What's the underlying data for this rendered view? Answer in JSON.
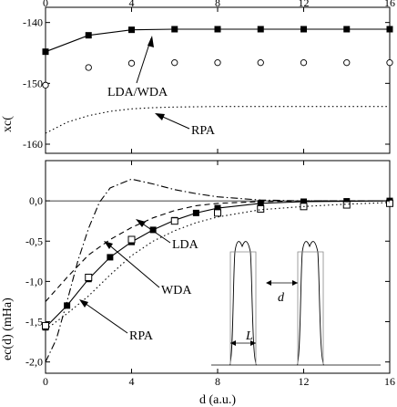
{
  "chart_data": [
    {
      "type": "line",
      "panel": "top",
      "xlabel": "",
      "ylabel": "xc(",
      "xlim": [
        0,
        16
      ],
      "ylim": [
        -161.5,
        -137.5
      ],
      "x_ticks": [
        "0",
        "4",
        "8",
        "12",
        "16"
      ],
      "y_ticks": [
        -140,
        -150,
        -160
      ],
      "y_tick_labels": [
        "-140",
        "-150",
        "-160"
      ],
      "series": [
        {
          "name": "LDA/WDA",
          "style": "solid-line-with-filled-squares",
          "x": [
            0,
            2,
            4,
            6,
            8,
            10,
            12,
            14,
            16
          ],
          "y": [
            -144.8,
            -142.1,
            -141.2,
            -141.1,
            -141.1,
            -141.1,
            -141.1,
            -141.1,
            -141.1
          ]
        },
        {
          "name": "",
          "style": "open-circles",
          "x": [
            0,
            2,
            4,
            6,
            8,
            10,
            12,
            14,
            16
          ],
          "y": [
            -150.3,
            -147.4,
            -146.7,
            -146.6,
            -146.6,
            -146.6,
            -146.6,
            -146.6,
            -146.6
          ]
        },
        {
          "name": "RPA",
          "style": "dotted-line",
          "x": [
            0,
            1,
            2,
            3,
            4,
            5,
            6,
            8,
            10,
            12,
            14,
            16
          ],
          "y": [
            -158.2,
            -156.4,
            -155.3,
            -154.6,
            -154.2,
            -154.0,
            -153.9,
            -153.8,
            -153.8,
            -153.8,
            -153.8,
            -153.8
          ]
        }
      ],
      "annotations": [
        "LDA/WDA",
        "RPA"
      ]
    },
    {
      "type": "line",
      "panel": "bottom",
      "xlabel": "d (a.u.)",
      "ylabel": "ec(d) (mHa)",
      "xlim": [
        0,
        16
      ],
      "ylim": [
        -2.14,
        0.5
      ],
      "x_ticks": [
        "0",
        "4",
        "8",
        "12",
        "16"
      ],
      "y_ticks": [
        0,
        -0.5,
        -1.0,
        -1.5,
        -2.0
      ],
      "y_tick_labels": [
        "0,0",
        "-0,5",
        "-1,0",
        "-1,5",
        "-2,0"
      ],
      "series": [
        {
          "name": "",
          "style": "solid-line-with-filled-squares",
          "x": [
            0,
            1,
            2,
            3,
            4,
            5,
            6,
            7,
            8,
            10,
            12,
            14,
            16
          ],
          "y": [
            -1.57,
            -1.3,
            -0.97,
            -0.7,
            -0.51,
            -0.36,
            -0.24,
            -0.15,
            -0.09,
            -0.03,
            -0.01,
            -0.005,
            0.0
          ]
        },
        {
          "name": "",
          "style": "open-squares",
          "x": [
            0,
            2,
            4,
            6,
            8,
            10,
            12,
            14,
            16
          ],
          "y": [
            -1.55,
            -0.95,
            -0.48,
            -0.25,
            -0.15,
            -0.1,
            -0.07,
            -0.05,
            -0.03
          ]
        },
        {
          "name": "LDA",
          "style": "dash-dot-line",
          "x": [
            0,
            0.5,
            1,
            1.5,
            2,
            2.5,
            3,
            4,
            5,
            6,
            7,
            8,
            10,
            12,
            14,
            16
          ],
          "y": [
            -2.0,
            -1.72,
            -1.25,
            -0.75,
            -0.34,
            -0.02,
            0.16,
            0.27,
            0.21,
            0.14,
            0.09,
            0.05,
            0.01,
            0.0,
            0.0,
            0.0
          ]
        },
        {
          "name": "WDA",
          "style": "dashed-line",
          "x": [
            0,
            1,
            2,
            3,
            4,
            5,
            6,
            7,
            8,
            10,
            12,
            14,
            16
          ],
          "y": [
            -1.25,
            -0.95,
            -0.67,
            -0.48,
            -0.33,
            -0.21,
            -0.12,
            -0.06,
            -0.03,
            -0.01,
            0.0,
            0.0,
            0.0
          ]
        },
        {
          "name": "RPA",
          "style": "dotted-line",
          "x": [
            0,
            1,
            2,
            3,
            4,
            5,
            6,
            7,
            8,
            10,
            12,
            14,
            16
          ],
          "y": [
            -1.6,
            -1.4,
            -1.18,
            -0.92,
            -0.68,
            -0.5,
            -0.37,
            -0.27,
            -0.2,
            -0.11,
            -0.07,
            -0.04,
            -0.02
          ]
        }
      ],
      "annotations": [
        "LDA",
        "WDA",
        "RPA"
      ],
      "inset_labels": [
        "L",
        "d"
      ]
    }
  ]
}
